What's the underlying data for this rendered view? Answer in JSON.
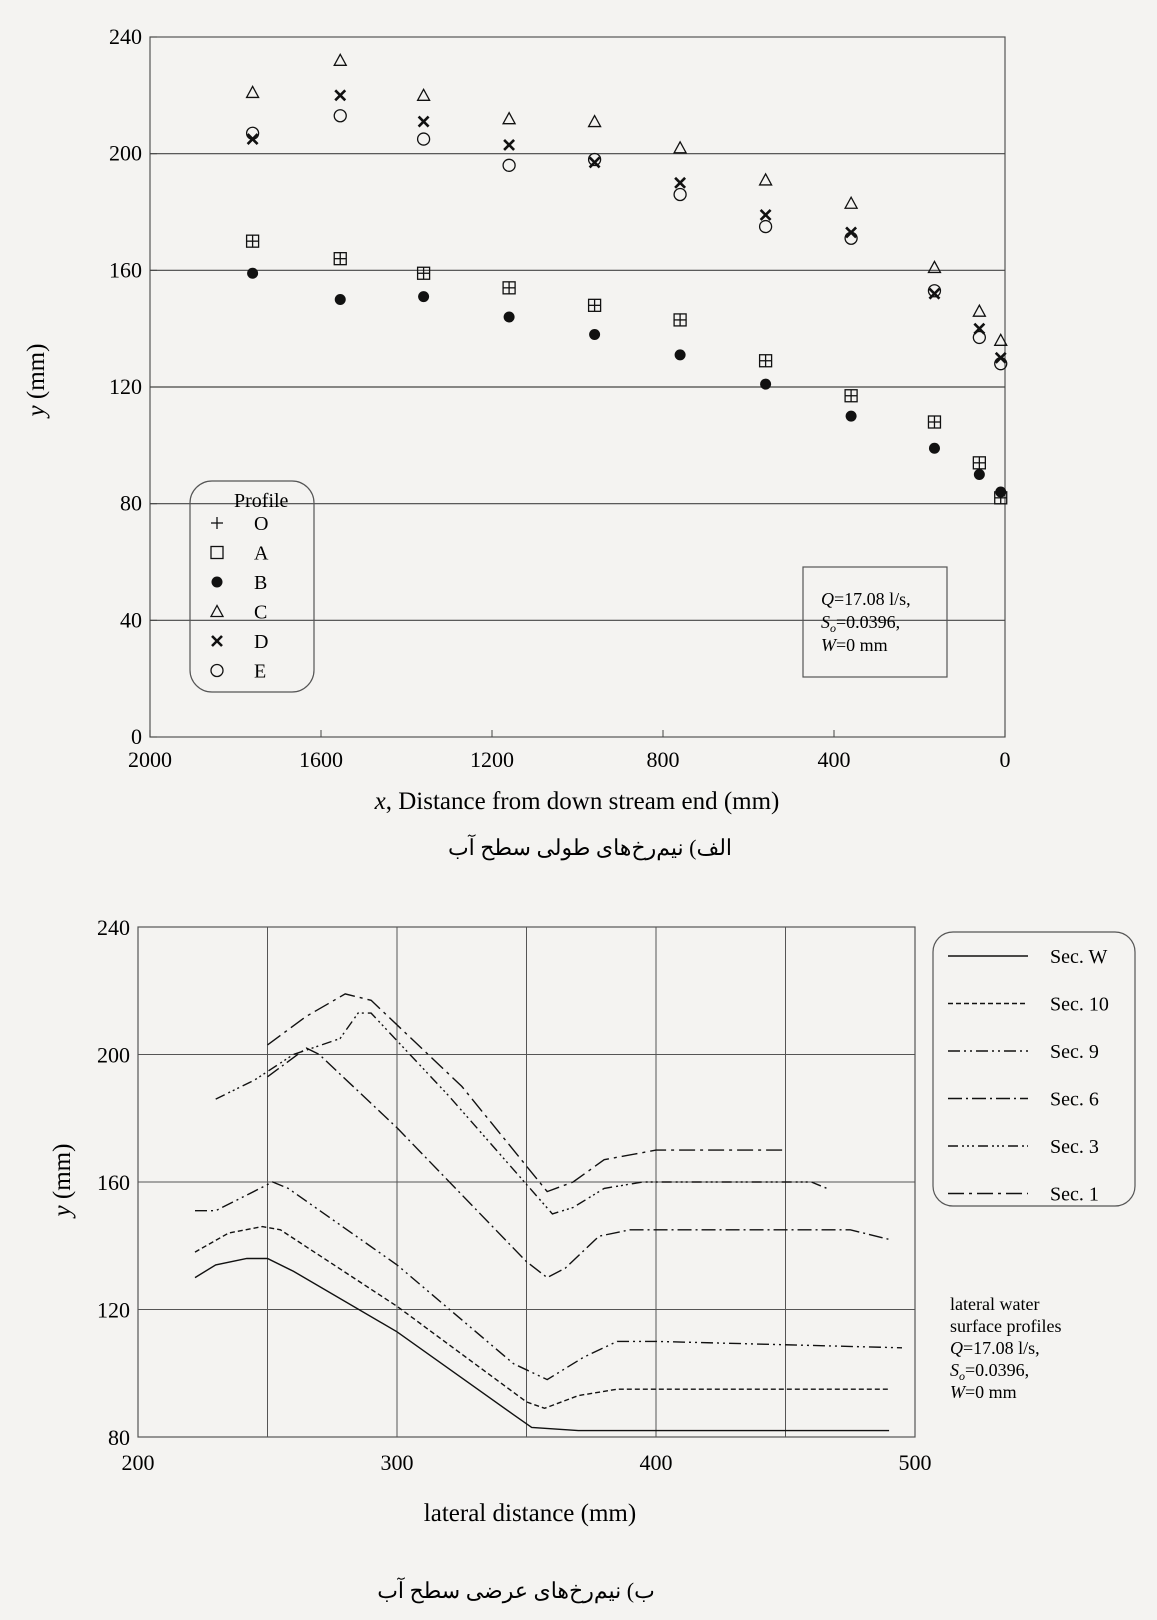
{
  "chart_data": [
    {
      "type": "scatter",
      "title": "",
      "caption": "الف) نیم‌رخ‌های طولی سطح آب",
      "xlabel_var": "x",
      "xlabel_rest": ", Distance from down stream end (mm)",
      "ylabel_var": "y",
      "ylabel_rest": " (mm)",
      "xlim": [
        2000,
        0
      ],
      "ylim": [
        0,
        240
      ],
      "x_ticks": [
        2000,
        1600,
        1200,
        800,
        400,
        0
      ],
      "y_ticks": [
        0,
        40,
        80,
        120,
        160,
        200,
        240
      ],
      "grid": "horizontal lines at 40, 80, 120, 160, 200, 240",
      "legend": {
        "title": "Profile",
        "placement": "bottom-left",
        "entries": [
          {
            "symbol": "+",
            "label": "O"
          },
          {
            "symbol": "□",
            "label": "A"
          },
          {
            "symbol": "●",
            "label": "B"
          },
          {
            "symbol": "△",
            "label": "C"
          },
          {
            "symbol": "✕",
            "label": "D"
          },
          {
            "symbol": "○",
            "label": "E"
          }
        ]
      },
      "annotation": {
        "placement": "bottom-right",
        "lines": [
          {
            "var": "Q",
            "sub": "",
            "text": "=17.08 l/s,"
          },
          {
            "var": "S",
            "sub": "o",
            "text": "=0.0396,"
          },
          {
            "var": "W",
            "sub": "",
            "text": "=0 mm"
          }
        ]
      },
      "series": [
        {
          "name": "O",
          "marker": "plus",
          "points": [
            [
              1760,
              170
            ],
            [
              1555,
              164
            ],
            [
              1360,
              159
            ],
            [
              1160,
              154
            ],
            [
              960,
              148
            ],
            [
              760,
              143
            ],
            [
              560,
              129
            ],
            [
              360,
              117
            ],
            [
              165,
              108
            ],
            [
              60,
              94
            ],
            [
              10,
              82
            ]
          ]
        },
        {
          "name": "A",
          "marker": "square",
          "points": [
            [
              1760,
              170
            ],
            [
              1555,
              164
            ],
            [
              1360,
              159
            ],
            [
              1160,
              154
            ],
            [
              960,
              148
            ],
            [
              760,
              143
            ],
            [
              560,
              129
            ],
            [
              360,
              117
            ],
            [
              165,
              108
            ],
            [
              60,
              94
            ],
            [
              10,
              82
            ]
          ]
        },
        {
          "name": "B",
          "marker": "dot",
          "points": [
            [
              1760,
              159
            ],
            [
              1555,
              150
            ],
            [
              1360,
              151
            ],
            [
              1160,
              144
            ],
            [
              960,
              138
            ],
            [
              760,
              131
            ],
            [
              560,
              121
            ],
            [
              360,
              110
            ],
            [
              165,
              99
            ],
            [
              60,
              90
            ],
            [
              10,
              84
            ]
          ]
        },
        {
          "name": "C",
          "marker": "triangle",
          "points": [
            [
              1760,
              221
            ],
            [
              1555,
              232
            ],
            [
              1360,
              220
            ],
            [
              1160,
              212
            ],
            [
              960,
              211
            ],
            [
              760,
              202
            ],
            [
              560,
              191
            ],
            [
              360,
              183
            ],
            [
              165,
              161
            ],
            [
              60,
              146
            ],
            [
              10,
              136
            ]
          ]
        },
        {
          "name": "D",
          "marker": "x",
          "points": [
            [
              1760,
              205
            ],
            [
              1555,
              220
            ],
            [
              1360,
              211
            ],
            [
              1160,
              203
            ],
            [
              960,
              197
            ],
            [
              760,
              190
            ],
            [
              560,
              179
            ],
            [
              360,
              173
            ],
            [
              165,
              152
            ],
            [
              60,
              140
            ],
            [
              10,
              130
            ]
          ]
        },
        {
          "name": "E",
          "marker": "circle",
          "points": [
            [
              1760,
              207
            ],
            [
              1555,
              213
            ],
            [
              1360,
              205
            ],
            [
              1160,
              196
            ],
            [
              960,
              198
            ],
            [
              760,
              186
            ],
            [
              560,
              175
            ],
            [
              360,
              171
            ],
            [
              165,
              153
            ],
            [
              60,
              137
            ],
            [
              10,
              128
            ]
          ]
        }
      ]
    },
    {
      "type": "line",
      "title": "",
      "caption": "ب) نیم‌رخ‌های عرضی سطح آب",
      "xlabel": "lateral distance (mm)",
      "ylabel_var": "y",
      "ylabel_rest": " (mm)",
      "xlim": [
        200,
        500
      ],
      "ylim": [
        80,
        240
      ],
      "x_ticks": [
        200,
        300,
        400,
        500
      ],
      "y_ticks": [
        80,
        120,
        160,
        200,
        240
      ],
      "grid": "on (vertical every 50, horizontal every 40)",
      "legend": {
        "placement": "right",
        "entries": [
          "Sec. W",
          "Sec. 10",
          "Sec. 9",
          "Sec. 6",
          "Sec. 3",
          "Sec. 1"
        ]
      },
      "annotation": {
        "placement": "right",
        "lines": [
          {
            "var": "",
            "sub": "",
            "text": "lateral water"
          },
          {
            "var": "",
            "sub": "",
            "text": "surface profiles"
          },
          {
            "var": "Q",
            "sub": "",
            "text": "=17.08 l/s,"
          },
          {
            "var": "S",
            "sub": "o",
            "text": "=0.0396,"
          },
          {
            "var": "W",
            "sub": "",
            "text": "=0 mm"
          }
        ]
      },
      "series": [
        {
          "name": "Sec. W",
          "dash": "solid",
          "points": [
            [
              222,
              130
            ],
            [
              230,
              134
            ],
            [
              242,
              136
            ],
            [
              250,
              136
            ],
            [
              260,
              132
            ],
            [
              300,
              113
            ],
            [
              345,
              87
            ],
            [
              352,
              83
            ],
            [
              370,
              82
            ],
            [
              490,
              82
            ]
          ]
        },
        {
          "name": "Sec. 10",
          "dash": "dashed",
          "points": [
            [
              222,
              138
            ],
            [
              235,
              144
            ],
            [
              248,
              146
            ],
            [
              255,
              145
            ],
            [
              300,
              121
            ],
            [
              350,
              91
            ],
            [
              357,
              89
            ],
            [
              370,
              93
            ],
            [
              385,
              95
            ],
            [
              490,
              95
            ]
          ]
        },
        {
          "name": "Sec. 9",
          "dash": "dashdotdot",
          "points": [
            [
              222,
              151
            ],
            [
              230,
              151
            ],
            [
              252,
              160
            ],
            [
              258,
              158
            ],
            [
              300,
              134
            ],
            [
              345,
              103
            ],
            [
              358,
              98
            ],
            [
              372,
              105
            ],
            [
              385,
              110
            ],
            [
              400,
              110
            ],
            [
              495,
              108
            ]
          ]
        },
        {
          "name": "Sec. 6",
          "dash": "dashdot",
          "points": [
            [
              250,
              193
            ],
            [
              265,
              202
            ],
            [
              270,
              200
            ],
            [
              300,
              177
            ],
            [
              350,
              135
            ],
            [
              358,
              130
            ],
            [
              365,
              133
            ],
            [
              378,
              143
            ],
            [
              390,
              145
            ],
            [
              475,
              145
            ],
            [
              490,
              142
            ]
          ]
        },
        {
          "name": "Sec. 3",
          "dash": "dashdotdotdot",
          "points": [
            [
              230,
              186
            ],
            [
              245,
              192
            ],
            [
              260,
              200
            ],
            [
              278,
              205
            ],
            [
              285,
              213
            ],
            [
              290,
              213
            ],
            [
              320,
              187
            ],
            [
              360,
              150
            ],
            [
              368,
              152
            ],
            [
              380,
              158
            ],
            [
              395,
              160
            ],
            [
              460,
              160
            ],
            [
              466,
              158
            ]
          ]
        },
        {
          "name": "Sec. 1",
          "dash": "longdashdot",
          "points": [
            [
              250,
              203
            ],
            [
              265,
              212
            ],
            [
              280,
              219
            ],
            [
              290,
              217
            ],
            [
              325,
              190
            ],
            [
              358,
              157
            ],
            [
              368,
              160
            ],
            [
              380,
              167
            ],
            [
              400,
              170
            ],
            [
              450,
              170
            ]
          ]
        }
      ]
    }
  ]
}
